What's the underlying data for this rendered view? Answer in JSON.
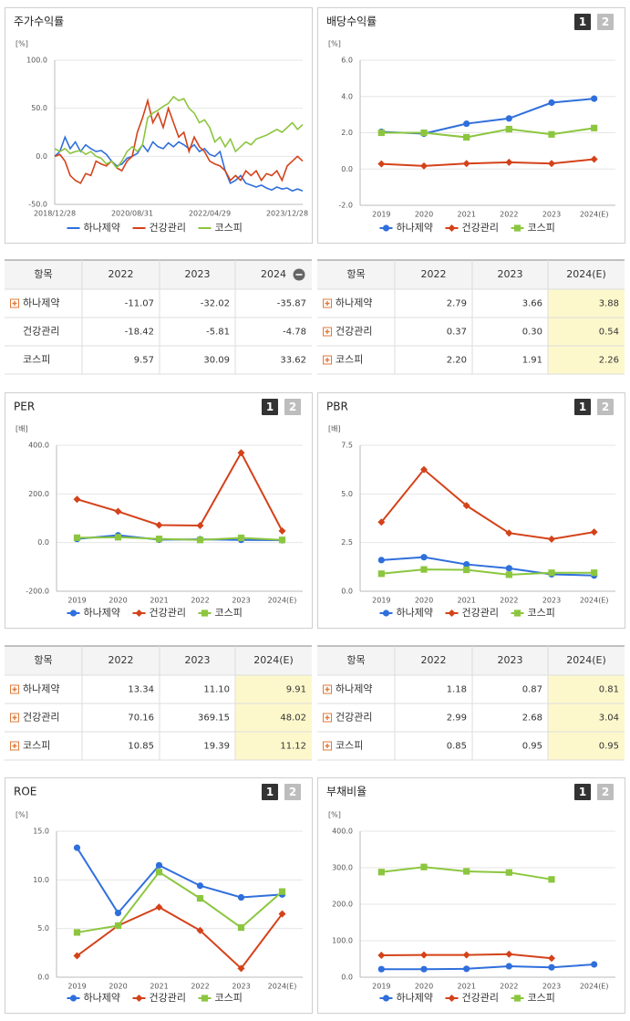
{
  "tabs": [
    "1",
    "2"
  ],
  "chart_data": [
    {
      "type": "line",
      "title": "주가수익률",
      "y_unit": "[%]",
      "categories": [
        "2018/12/28",
        null,
        null,
        null,
        null,
        null,
        null,
        null,
        null,
        null,
        null,
        null,
        null,
        null,
        null,
        "2020/08/31",
        null,
        null,
        null,
        null,
        null,
        null,
        null,
        null,
        null,
        null,
        null,
        null,
        null,
        null,
        "2022/04/29",
        null,
        null,
        null,
        null,
        null,
        null,
        null,
        null,
        null,
        null,
        null,
        null,
        null,
        null,
        "2023/12/28",
        null,
        null,
        null
      ],
      "ylim": [
        -50,
        100
      ],
      "yticks": [
        {
          "value": -50,
          "label": "-50.0"
        },
        {
          "value": 0,
          "label": "0.0"
        },
        {
          "value": 50,
          "label": "50.0"
        },
        {
          "value": 100,
          "label": "100.0"
        }
      ],
      "series": [
        {
          "name": "하나제약",
          "color": "#2f6fdc",
          "values": [
            0,
            5,
            20,
            8,
            15,
            5,
            12,
            8,
            5,
            6,
            2,
            -5,
            -10,
            -8,
            -2,
            0,
            3,
            12,
            5,
            15,
            10,
            8,
            14,
            10,
            15,
            12,
            8,
            12,
            5,
            8,
            2,
            0,
            5,
            -15,
            -28,
            -25,
            -20,
            -28,
            -30,
            -32,
            -30,
            -33,
            -35,
            -32,
            -34,
            -33,
            -36,
            -34,
            -36
          ]
        },
        {
          "name": "건강관리",
          "color": "#d4421a",
          "values": [
            0,
            2,
            -5,
            -20,
            -25,
            -28,
            -18,
            -20,
            -5,
            -8,
            -10,
            -5,
            -12,
            -15,
            -5,
            0,
            25,
            40,
            58,
            35,
            45,
            30,
            50,
            35,
            20,
            25,
            5,
            20,
            10,
            5,
            -5,
            -8,
            -10,
            -15,
            -25,
            -20,
            -25,
            -15,
            -20,
            -15,
            -25,
            -18,
            -20,
            -15,
            -25,
            -10,
            -5,
            0,
            -5
          ]
        },
        {
          "name": "코스피",
          "color": "#8cc63f",
          "values": [
            8,
            5,
            8,
            3,
            5,
            6,
            2,
            5,
            0,
            -2,
            -8,
            -5,
            -12,
            -5,
            5,
            10,
            5,
            12,
            40,
            45,
            48,
            52,
            55,
            62,
            58,
            60,
            50,
            45,
            35,
            38,
            30,
            15,
            20,
            10,
            18,
            5,
            10,
            15,
            12,
            18,
            20,
            22,
            25,
            28,
            25,
            30,
            35,
            28,
            33
          ]
        }
      ]
    },
    {
      "type": "line",
      "title": "배당수익률",
      "y_unit": "[%]",
      "categories": [
        "2019",
        "2020",
        "2021",
        "2022",
        "2023",
        "2024(E)"
      ],
      "ylim": [
        -2,
        6
      ],
      "yticks": [
        {
          "value": -2,
          "label": "-2.0"
        },
        {
          "value": 0,
          "label": "0.0"
        },
        {
          "value": 2,
          "label": "2.0"
        },
        {
          "value": 4,
          "label": "4.0"
        },
        {
          "value": 6,
          "label": "6.0"
        }
      ],
      "series": [
        {
          "name": "하나제약",
          "color": "#2f6fdc",
          "marker": "circle",
          "values": [
            2.05,
            1.95,
            2.5,
            2.79,
            3.66,
            3.88
          ]
        },
        {
          "name": "건강관리",
          "color": "#d4421a",
          "marker": "diamond",
          "values": [
            0.28,
            0.17,
            0.3,
            0.37,
            0.3,
            0.54
          ]
        },
        {
          "name": "코스피",
          "color": "#8cc63f",
          "marker": "square",
          "values": [
            2.0,
            2.0,
            1.75,
            2.2,
            1.91,
            2.26
          ]
        }
      ]
    },
    {
      "type": "line",
      "title": "PER",
      "y_unit": "[배]",
      "categories": [
        "2019",
        "2020",
        "2021",
        "2022",
        "2023",
        "2024(E)"
      ],
      "ylim": [
        -200,
        400
      ],
      "yticks": [
        {
          "value": -200,
          "label": "-200.0"
        },
        {
          "value": 0,
          "label": "0.0"
        },
        {
          "value": 200,
          "label": "200.0"
        },
        {
          "value": 400,
          "label": "400.0"
        }
      ],
      "series": [
        {
          "name": "하나제약",
          "color": "#2f6fdc",
          "marker": "circle",
          "values": [
            15,
            30,
            12,
            13.34,
            11.1,
            9.91
          ]
        },
        {
          "name": "건강관리",
          "color": "#d4421a",
          "marker": "diamond",
          "values": [
            178,
            128,
            72,
            70.16,
            369.15,
            48.02
          ]
        },
        {
          "name": "코스피",
          "color": "#8cc63f",
          "marker": "square",
          "values": [
            20,
            22,
            15,
            10.85,
            19.39,
            11.12
          ]
        }
      ]
    },
    {
      "type": "line",
      "title": "PBR",
      "y_unit": "[배]",
      "categories": [
        "2019",
        "2020",
        "2021",
        "2022",
        "2023",
        "2024(E)"
      ],
      "ylim": [
        0,
        7.5
      ],
      "yticks": [
        {
          "value": 0,
          "label": "0.0"
        },
        {
          "value": 2.5,
          "label": "2.5"
        },
        {
          "value": 5,
          "label": "5.0"
        },
        {
          "value": 7.5,
          "label": "7.5"
        }
      ],
      "series": [
        {
          "name": "하나제약",
          "color": "#2f6fdc",
          "marker": "circle",
          "values": [
            1.6,
            1.75,
            1.38,
            1.18,
            0.87,
            0.81
          ]
        },
        {
          "name": "건강관리",
          "color": "#d4421a",
          "marker": "diamond",
          "values": [
            3.55,
            6.25,
            4.4,
            2.99,
            2.68,
            3.04
          ]
        },
        {
          "name": "코스피",
          "color": "#8cc63f",
          "marker": "square",
          "values": [
            0.9,
            1.12,
            1.1,
            0.85,
            0.95,
            0.95
          ]
        }
      ]
    },
    {
      "type": "line",
      "title": "ROE",
      "y_unit": "[%]",
      "categories": [
        "2019",
        "2020",
        "2021",
        "2022",
        "2023",
        "2024(E)"
      ],
      "ylim": [
        0,
        15
      ],
      "yticks": [
        {
          "value": 0,
          "label": "0.0"
        },
        {
          "value": 5,
          "label": "5.0"
        },
        {
          "value": 10,
          "label": "10.0"
        },
        {
          "value": 15,
          "label": "15.0"
        }
      ],
      "series": [
        {
          "name": "하나제약",
          "color": "#2f6fdc",
          "marker": "circle",
          "values": [
            13.3,
            6.6,
            11.5,
            9.4,
            8.2,
            8.5
          ]
        },
        {
          "name": "건강관리",
          "color": "#d4421a",
          "marker": "diamond",
          "values": [
            2.2,
            5.3,
            7.2,
            4.8,
            0.9,
            6.5
          ]
        },
        {
          "name": "코스피",
          "color": "#8cc63f",
          "marker": "square",
          "values": [
            4.6,
            5.3,
            10.8,
            8.1,
            5.1,
            8.8
          ]
        }
      ]
    },
    {
      "type": "line",
      "title": "부채비율",
      "y_unit": "[%]",
      "categories": [
        "2019",
        "2020",
        "2021",
        "2022",
        "2023",
        "2024(E)"
      ],
      "ylim": [
        0,
        400
      ],
      "yticks": [
        {
          "value": 0,
          "label": "0.0"
        },
        {
          "value": 100,
          "label": "100.0"
        },
        {
          "value": 200,
          "label": "200.0"
        },
        {
          "value": 300,
          "label": "300.0"
        },
        {
          "value": 400,
          "label": "400.0"
        }
      ],
      "series": [
        {
          "name": "하나제약",
          "color": "#2f6fdc",
          "marker": "circle",
          "values": [
            22,
            22,
            23,
            30,
            27,
            35
          ]
        },
        {
          "name": "건강관리",
          "color": "#d4421a",
          "marker": "diamond",
          "values": [
            60,
            61,
            61,
            63,
            52,
            null
          ]
        },
        {
          "name": "코스피",
          "color": "#8cc63f",
          "marker": "square",
          "values": [
            288,
            302,
            290,
            287,
            268,
            null
          ]
        }
      ]
    }
  ],
  "tables": [
    {
      "columns": [
        "항목",
        "2022",
        "2023",
        "2024"
      ],
      "rows": [
        [
          "하나제약",
          "-11.07",
          "-32.02",
          "-35.87"
        ],
        [
          "건강관리",
          "-18.42",
          "-5.81",
          "-4.78"
        ],
        [
          "코스피",
          "9.57",
          "30.09",
          "33.62"
        ]
      ]
    },
    {
      "columns": [
        "항목",
        "2022",
        "2023",
        "2024(E)"
      ],
      "rows": [
        [
          "하나제약",
          "2.79",
          "3.66",
          "3.88"
        ],
        [
          "건강관리",
          "0.37",
          "0.30",
          "0.54"
        ],
        [
          "코스피",
          "2.20",
          "1.91",
          "2.26"
        ]
      ]
    },
    {
      "columns": [
        "항목",
        "2022",
        "2023",
        "2024(E)"
      ],
      "rows": [
        [
          "하나제약",
          "13.34",
          "11.10",
          "9.91"
        ],
        [
          "건강관리",
          "70.16",
          "369.15",
          "48.02"
        ],
        [
          "코스피",
          "10.85",
          "19.39",
          "11.12"
        ]
      ]
    },
    {
      "columns": [
        "항목",
        "2022",
        "2023",
        "2024(E)"
      ],
      "rows": [
        [
          "하나제약",
          "1.18",
          "0.87",
          "0.81"
        ],
        [
          "건강관리",
          "2.99",
          "2.68",
          "3.04"
        ],
        [
          "코스피",
          "0.85",
          "0.95",
          "0.95"
        ]
      ]
    }
  ]
}
